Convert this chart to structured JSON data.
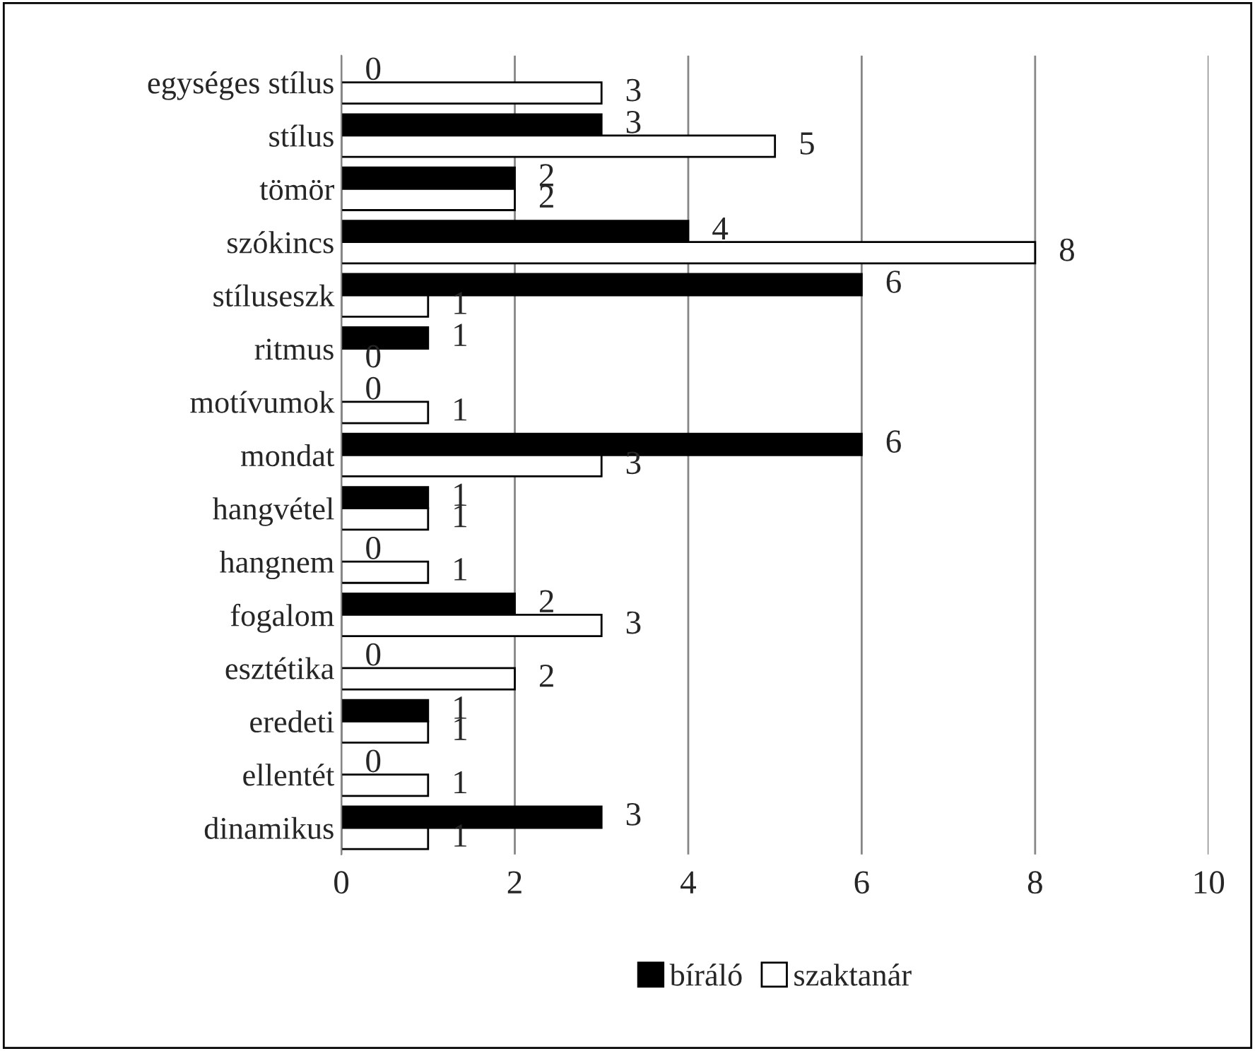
{
  "chart_data": {
    "type": "bar",
    "orientation": "horizontal",
    "categories": [
      "egységes stílus",
      "stílus",
      "tömör",
      "szókincs",
      "stíluseszk",
      "ritmus",
      "motívumok",
      "mondat",
      "hangvétel",
      "hangnem",
      "fogalom",
      "esztétika",
      "eredeti",
      "ellentét",
      "dinamikus"
    ],
    "series": [
      {
        "name": "bíráló",
        "color": "#000000",
        "values": [
          0,
          3,
          2,
          4,
          6,
          1,
          0,
          6,
          1,
          0,
          2,
          0,
          1,
          0,
          3
        ]
      },
      {
        "name": "szaktanár",
        "color": "#ffffff",
        "values": [
          3,
          5,
          2,
          8,
          1,
          0,
          1,
          3,
          1,
          1,
          3,
          2,
          1,
          1,
          1
        ]
      }
    ],
    "xlim": [
      0,
      10
    ],
    "xticks": [
      0,
      2,
      4,
      6,
      8,
      10
    ],
    "grid": "x",
    "legend": "bottom",
    "data_labels": true
  }
}
